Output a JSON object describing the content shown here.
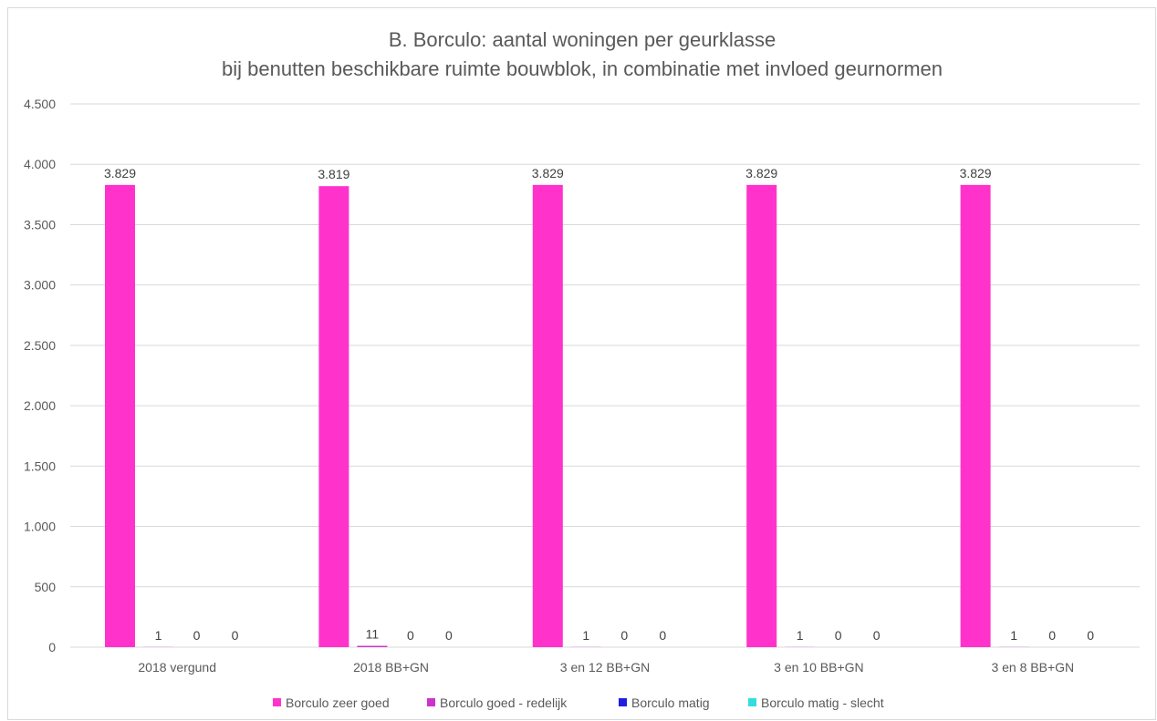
{
  "chart_data": {
    "type": "bar",
    "title": "B. Borculo: aantal woningen per geurklasse",
    "subtitle": "bij benutten beschikbare ruimte bouwblok, in combinatie met invloed geurnormen",
    "categories": [
      "2018 vergund",
      "2018 BB+GN",
      "3 en 12 BB+GN",
      "3 en 10 BB+GN",
      "3 en 8 BB+GN"
    ],
    "series": [
      {
        "name": "Borculo zeer goed",
        "color": "#ff33cc",
        "values": [
          3829,
          3819,
          3829,
          3829,
          3829
        ],
        "labels": [
          "3.829",
          "3.819",
          "3.829",
          "3.829",
          "3.829"
        ]
      },
      {
        "name": "Borculo goed - redelijk",
        "color": "#cc33cc",
        "values": [
          1,
          11,
          1,
          1,
          1
        ],
        "labels": [
          "1",
          "11",
          "1",
          "1",
          "1"
        ]
      },
      {
        "name": "Borculo matig",
        "color": "#1f1fdf",
        "values": [
          0,
          0,
          0,
          0,
          0
        ],
        "labels": [
          "0",
          "0",
          "0",
          "0",
          "0"
        ]
      },
      {
        "name": "Borculo matig - slecht",
        "color": "#33dddd",
        "values": [
          0,
          0,
          0,
          0,
          0
        ],
        "labels": [
          "0",
          "0",
          "0",
          "0",
          "0"
        ]
      }
    ],
    "ylim": [
      0,
      4500
    ],
    "yticks": [
      0,
      500,
      1000,
      1500,
      2000,
      2500,
      3000,
      3500,
      4000,
      4500
    ],
    "ytick_labels": [
      "0",
      "500",
      "1.000",
      "1.500",
      "2.000",
      "2.500",
      "3.000",
      "3.500",
      "4.000",
      "4.500"
    ],
    "xlabel": "",
    "ylabel": "",
    "grid": true,
    "legend_position": "bottom"
  }
}
